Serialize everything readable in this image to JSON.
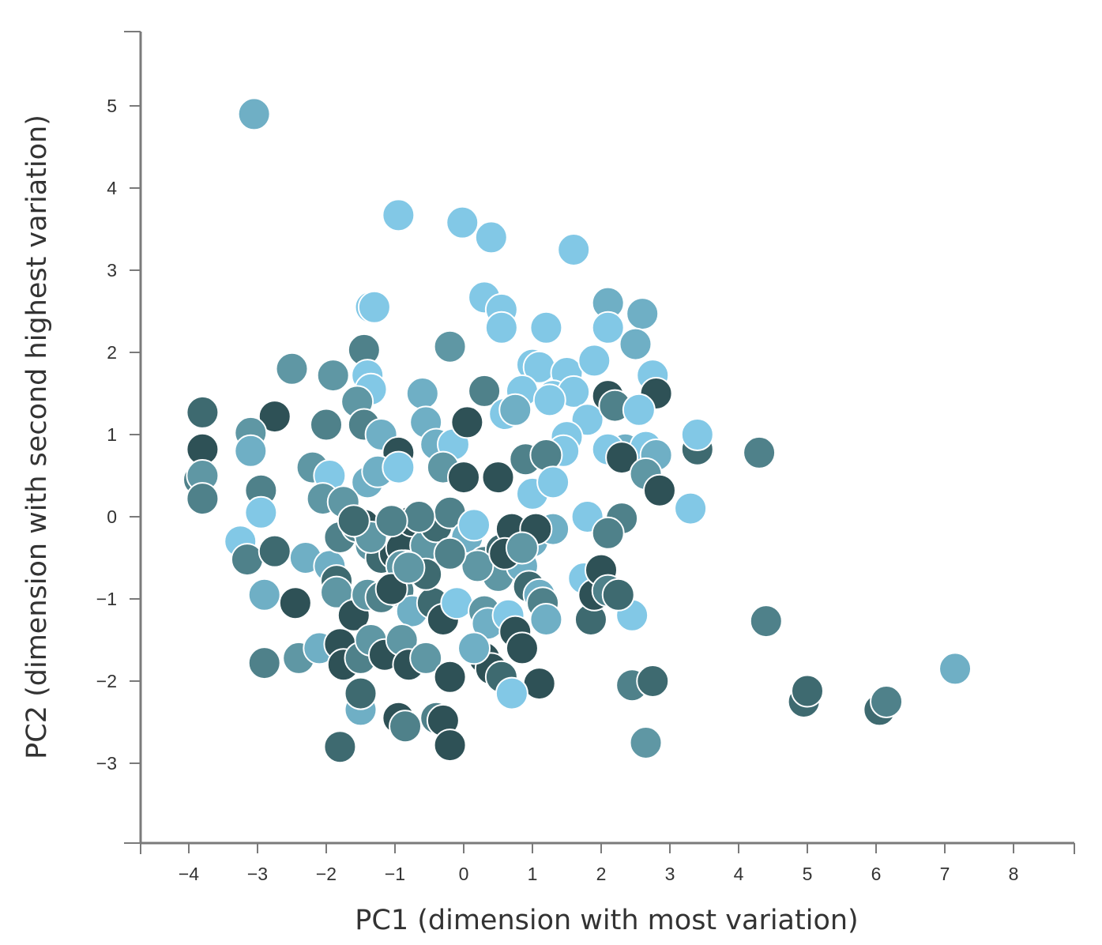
{
  "chart_data": {
    "type": "scatter",
    "title": "",
    "xlabel": "PC1 (dimension with most variation)",
    "ylabel": "PC2 (dimension with second highest variation)",
    "xlim": [
      -4.75,
      8.85
    ],
    "ylim": [
      -3.95,
      5.9
    ],
    "xticks": [
      -4,
      -3,
      -2,
      -1,
      0,
      1,
      2,
      3,
      4,
      5,
      6,
      7,
      8
    ],
    "yticks": [
      -3,
      -2,
      -1,
      0,
      1,
      2,
      3,
      4,
      5
    ],
    "grid": false,
    "legend": "none",
    "colors": [
      "#2e5156",
      "#3e6a70",
      "#4f818a",
      "#5f97a4",
      "#6fafc5",
      "#82c8e6"
    ],
    "points": [
      [
        -3.05,
        4.9,
        4
      ],
      [
        -0.95,
        3.67,
        5
      ],
      [
        -0.02,
        3.58,
        5
      ],
      [
        0.4,
        3.4,
        5
      ],
      [
        1.6,
        3.25,
        5
      ],
      [
        0.3,
        2.67,
        5
      ],
      [
        0.55,
        2.52,
        5
      ],
      [
        0.55,
        2.3,
        5
      ],
      [
        -1.35,
        2.55,
        5
      ],
      [
        -1.3,
        2.55,
        5
      ],
      [
        2.1,
        2.6,
        4
      ],
      [
        2.6,
        2.47,
        4
      ],
      [
        1.2,
        2.3,
        5
      ],
      [
        2.1,
        2.3,
        5
      ],
      [
        2.5,
        2.1,
        4
      ],
      [
        -0.2,
        2.07,
        3
      ],
      [
        -1.45,
        2.03,
        2
      ],
      [
        -2.5,
        1.8,
        3
      ],
      [
        -1.9,
        1.72,
        3
      ],
      [
        -1.4,
        1.72,
        5
      ],
      [
        1.0,
        1.85,
        5
      ],
      [
        1.1,
        1.82,
        5
      ],
      [
        1.5,
        1.75,
        5
      ],
      [
        1.9,
        1.9,
        5
      ],
      [
        2.75,
        1.72,
        5
      ],
      [
        -1.35,
        1.55,
        5
      ],
      [
        0.3,
        1.53,
        2
      ],
      [
        0.85,
        1.53,
        5
      ],
      [
        1.3,
        1.47,
        5
      ],
      [
        1.6,
        1.52,
        5
      ],
      [
        2.1,
        1.47,
        0
      ],
      [
        2.8,
        1.5,
        0
      ],
      [
        -0.6,
        1.5,
        4
      ],
      [
        -1.55,
        1.4,
        3
      ],
      [
        -3.8,
        1.27,
        1
      ],
      [
        -2.75,
        1.22,
        0
      ],
      [
        -3.1,
        1.02,
        3
      ],
      [
        -2.0,
        1.12,
        2
      ],
      [
        -1.45,
        1.12,
        2
      ],
      [
        -1.2,
        1.0,
        4
      ],
      [
        -0.55,
        1.15,
        4
      ],
      [
        -0.4,
        0.88,
        4
      ],
      [
        -0.15,
        0.88,
        5
      ],
      [
        0.05,
        1.15,
        0
      ],
      [
        0.6,
        1.25,
        5
      ],
      [
        0.75,
        1.3,
        4
      ],
      [
        1.25,
        1.42,
        5
      ],
      [
        1.8,
        1.18,
        5
      ],
      [
        2.2,
        1.35,
        2
      ],
      [
        2.55,
        1.3,
        5
      ],
      [
        3.4,
        0.82,
        1
      ],
      [
        3.4,
        1.0,
        5
      ],
      [
        2.35,
        0.82,
        4
      ],
      [
        2.65,
        0.85,
        5
      ],
      [
        1.5,
        0.97,
        5
      ],
      [
        1.45,
        0.8,
        5
      ],
      [
        2.1,
        0.82,
        5
      ],
      [
        2.8,
        0.75,
        4
      ],
      [
        -3.8,
        0.82,
        0
      ],
      [
        -3.1,
        0.8,
        4
      ],
      [
        -0.95,
        0.78,
        0
      ],
      [
        0.9,
        0.7,
        2
      ],
      [
        1.2,
        0.75,
        2
      ],
      [
        2.3,
        0.72,
        0
      ],
      [
        4.3,
        0.78,
        2
      ],
      [
        -3.85,
        0.45,
        2
      ],
      [
        -3.8,
        0.5,
        3
      ],
      [
        -3.8,
        0.22,
        2
      ],
      [
        -2.2,
        0.6,
        3
      ],
      [
        -1.95,
        0.5,
        5
      ],
      [
        -1.4,
        0.42,
        4
      ],
      [
        -1.25,
        0.55,
        4
      ],
      [
        -0.95,
        0.6,
        5
      ],
      [
        -0.3,
        0.6,
        3
      ],
      [
        0.0,
        0.48,
        0
      ],
      [
        0.5,
        0.48,
        0
      ],
      [
        1.0,
        0.28,
        5
      ],
      [
        1.3,
        0.42,
        5
      ],
      [
        2.65,
        0.52,
        3
      ],
      [
        2.85,
        0.32,
        0
      ],
      [
        -2.95,
        0.32,
        2
      ],
      [
        -2.05,
        0.22,
        3
      ],
      [
        -1.75,
        0.18,
        3
      ],
      [
        -2.95,
        0.05,
        5
      ],
      [
        -3.25,
        -0.3,
        5
      ],
      [
        -3.15,
        -0.52,
        2
      ],
      [
        -2.75,
        -0.42,
        1
      ],
      [
        -2.3,
        -0.5,
        4
      ],
      [
        -1.95,
        -0.6,
        4
      ],
      [
        -1.8,
        -0.25,
        2
      ],
      [
        -1.55,
        -0.12,
        2
      ],
      [
        -1.45,
        -0.1,
        0
      ],
      [
        -1.35,
        -0.35,
        3
      ],
      [
        -1.2,
        -0.5,
        1
      ],
      [
        -1.0,
        -0.45,
        0
      ],
      [
        -0.9,
        -0.38,
        0
      ],
      [
        -0.85,
        -0.6,
        3
      ],
      [
        -0.75,
        -0.05,
        0
      ],
      [
        -0.55,
        -0.35,
        3
      ],
      [
        -0.4,
        -0.12,
        1
      ],
      [
        -0.2,
        0.05,
        2
      ],
      [
        0.05,
        -0.25,
        4
      ],
      [
        0.15,
        -0.1,
        5
      ],
      [
        0.3,
        -0.55,
        2
      ],
      [
        0.5,
        -0.72,
        3
      ],
      [
        0.55,
        -0.4,
        1
      ],
      [
        0.7,
        -0.15,
        0
      ],
      [
        0.85,
        -0.6,
        4
      ],
      [
        1.0,
        -0.3,
        4
      ],
      [
        1.3,
        -0.15,
        4
      ],
      [
        1.8,
        0.0,
        5
      ],
      [
        2.3,
        -0.02,
        2
      ],
      [
        2.1,
        -0.2,
        2
      ],
      [
        3.3,
        0.1,
        5
      ],
      [
        1.75,
        -0.75,
        5
      ],
      [
        -2.9,
        -0.95,
        4
      ],
      [
        -2.45,
        -1.05,
        0
      ],
      [
        -1.85,
        -0.78,
        1
      ],
      [
        -1.85,
        -0.92,
        3
      ],
      [
        -1.6,
        -1.2,
        0
      ],
      [
        -1.4,
        -0.95,
        3
      ],
      [
        -1.2,
        -0.98,
        2
      ],
      [
        -0.95,
        -0.9,
        2
      ],
      [
        -0.9,
        -0.6,
        3
      ],
      [
        -0.75,
        -1.15,
        4
      ],
      [
        -0.45,
        -1.05,
        1
      ],
      [
        -0.3,
        -1.25,
        0
      ],
      [
        -0.1,
        -1.05,
        5
      ],
      [
        0.3,
        -1.15,
        3
      ],
      [
        0.35,
        -1.3,
        4
      ],
      [
        0.65,
        -1.2,
        5
      ],
      [
        0.75,
        -1.4,
        0
      ],
      [
        0.95,
        -0.85,
        1
      ],
      [
        1.1,
        -0.95,
        4
      ],
      [
        1.15,
        -1.05,
        2
      ],
      [
        1.2,
        -1.25,
        4
      ],
      [
        1.85,
        -1.25,
        1
      ],
      [
        1.9,
        -0.95,
        0
      ],
      [
        2.0,
        -0.65,
        0
      ],
      [
        2.45,
        -1.2,
        5
      ],
      [
        4.4,
        -1.27,
        2
      ],
      [
        -2.9,
        -1.78,
        2
      ],
      [
        -2.4,
        -1.72,
        3
      ],
      [
        -2.1,
        -1.6,
        4
      ],
      [
        -1.8,
        -1.55,
        0
      ],
      [
        -1.75,
        -1.8,
        0
      ],
      [
        -1.5,
        -1.72,
        2
      ],
      [
        -1.35,
        -1.5,
        3
      ],
      [
        -1.15,
        -1.68,
        0
      ],
      [
        -0.9,
        -1.5,
        3
      ],
      [
        -0.8,
        -1.8,
        0
      ],
      [
        -0.55,
        -1.72,
        3
      ],
      [
        -0.2,
        -1.95,
        0
      ],
      [
        0.3,
        -1.72,
        0
      ],
      [
        0.4,
        -1.85,
        0
      ],
      [
        0.55,
        -1.95,
        1
      ],
      [
        0.85,
        -1.6,
        0
      ],
      [
        1.1,
        -2.03,
        0
      ],
      [
        2.45,
        -2.05,
        2
      ],
      [
        2.75,
        -2.0,
        1
      ],
      [
        -1.5,
        -2.35,
        4
      ],
      [
        -1.5,
        -2.15,
        1
      ],
      [
        -0.95,
        -2.45,
        0
      ],
      [
        -0.85,
        -2.55,
        2
      ],
      [
        -0.4,
        -2.45,
        2
      ],
      [
        -0.3,
        -2.48,
        0
      ],
      [
        -0.2,
        -2.78,
        0
      ],
      [
        -1.8,
        -2.8,
        1
      ],
      [
        0.7,
        -2.15,
        5
      ],
      [
        2.65,
        -2.75,
        3
      ],
      [
        4.95,
        -2.25,
        1
      ],
      [
        5.0,
        -2.12,
        1
      ],
      [
        6.05,
        -2.35,
        1
      ],
      [
        6.15,
        -2.25,
        2
      ],
      [
        7.15,
        -1.85,
        4
      ],
      [
        -1.35,
        -0.25,
        3
      ],
      [
        -0.55,
        -0.7,
        1
      ],
      [
        0.2,
        -0.6,
        3
      ],
      [
        -1.05,
        -0.88,
        0
      ],
      [
        -0.8,
        -0.62,
        3
      ],
      [
        0.15,
        -1.6,
        4
      ],
      [
        0.6,
        -0.45,
        0
      ],
      [
        -0.65,
        0.0,
        2
      ],
      [
        -0.2,
        -0.45,
        2
      ],
      [
        1.05,
        -0.15,
        0
      ],
      [
        2.1,
        -0.9,
        2
      ],
      [
        2.25,
        -0.95,
        1
      ],
      [
        -1.6,
        -0.05,
        1
      ],
      [
        -1.05,
        -0.05,
        2
      ],
      [
        0.85,
        -0.38,
        3
      ]
    ]
  }
}
